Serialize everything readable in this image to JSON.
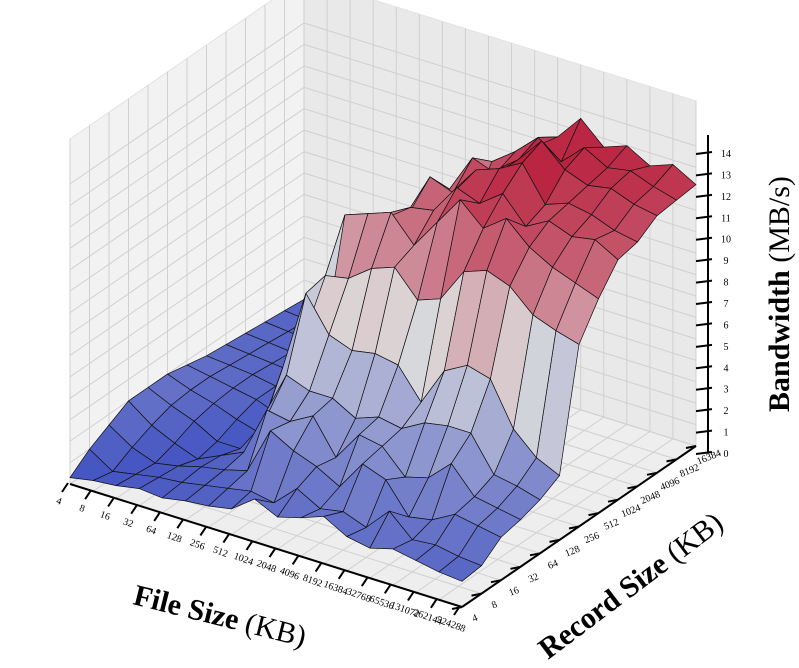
{
  "chart_data": {
    "type": "surface3d",
    "x_axis": {
      "label": "File Size",
      "unit": "(KB)",
      "ticks": [
        "4",
        "8",
        "16",
        "32",
        "64",
        "128",
        "256",
        "512",
        "1024",
        "2048",
        "4096",
        "8192",
        "16384",
        "32768",
        "65536",
        "131072",
        "262144",
        "524288"
      ]
    },
    "y_axis": {
      "label": "Record Size",
      "unit": "(KB)",
      "ticks": [
        "4",
        "8",
        "16",
        "32",
        "64",
        "128",
        "256",
        "512",
        "1024",
        "2048",
        "4096",
        "8192",
        "16384"
      ]
    },
    "z_axis": {
      "label": "Bandwidth",
      "unit": "(MB/s)",
      "ticks": [
        "0",
        "1",
        "2",
        "3",
        "4",
        "5",
        "6",
        "7",
        "8",
        "9",
        "10",
        "11",
        "12",
        "13",
        "14"
      ],
      "range": [
        0,
        14
      ]
    },
    "colormap": "coolwarm",
    "colors": {
      "low": "#3b4cc0",
      "mid": "#dddddd",
      "high": "#b40426",
      "pane": "#f2f2f2",
      "grid": "#d0d0d0"
    },
    "grid": true,
    "z_values": [
      [
        0.3,
        0.5,
        0.6,
        0.8,
        0.7,
        0.9,
        1.0,
        1.2,
        2.0,
        1.5,
        1.8,
        2.2,
        1.6,
        1.4,
        1.7,
        1.5,
        1.3,
        1.2
      ],
      [
        1.0,
        0.3,
        0.5,
        0.7,
        0.8,
        1.0,
        1.2,
        1.4,
        1.2,
        2.2,
        1.6,
        1.8,
        1.4,
        2.5,
        1.5,
        1.6,
        1.4,
        1.3
      ],
      [
        1.5,
        0.8,
        0.4,
        0.6,
        0.9,
        1.1,
        1.4,
        3.6,
        3.0,
        2.6,
        2.0,
        3.4,
        3.0,
        1.6,
        1.8,
        2.4,
        2.2,
        2.0
      ],
      [
        2.0,
        1.2,
        0.7,
        0.3,
        0.8,
        1.3,
        3.6,
        3.4,
        4.0,
        2.4,
        3.8,
        3.6,
        2.5,
        2.8,
        3.8,
        2.6,
        2.4,
        2.2
      ],
      [
        2.0,
        1.5,
        1.1,
        0.5,
        0.5,
        2.0,
        4.6,
        4.2,
        4.2,
        3.6,
        4.0,
        3.8,
        4.4,
        4.6,
        4.6,
        3.0,
        2.8,
        2.5
      ],
      [
        2.0,
        1.6,
        1.3,
        0.9,
        0.6,
        4.0,
        7.8,
        6.2,
        5.8,
        6.0,
        5.8,
        4.4,
        6.2,
        6.8,
        6.5,
        4.5,
        3.5,
        3.0
      ],
      [
        1.8,
        1.6,
        1.4,
        1.2,
        0.8,
        4.6,
        8.0,
        8.2,
        9.0,
        9.4,
        8.2,
        8.6,
        10.2,
        10.6,
        10.2,
        9.2,
        8.8,
        8.5
      ],
      [
        1.6,
        1.5,
        1.4,
        1.2,
        1.0,
        3.2,
        10.2,
        10.6,
        11.0,
        9.8,
        11.2,
        12.6,
        11.6,
        12.4,
        11.4,
        10.8,
        10.4,
        10.0
      ],
      [
        1.5,
        1.4,
        1.3,
        1.2,
        1.1,
        2.2,
        8.4,
        9.8,
        10.6,
        10.8,
        12.2,
        11.8,
        12.6,
        11.4,
        12.0,
        11.6,
        11.8,
        11.2
      ],
      [
        1.4,
        1.3,
        1.2,
        1.1,
        1.0,
        1.6,
        5.0,
        9.2,
        11.4,
        11.0,
        12.4,
        12.8,
        13.4,
        11.8,
        12.2,
        12.0,
        11.6,
        11.4
      ],
      [
        1.3,
        1.2,
        1.1,
        1.0,
        1.0,
        1.4,
        2.8,
        6.4,
        10.2,
        12.0,
        11.6,
        12.6,
        13.8,
        12.8,
        12.4,
        12.6,
        12.2,
        12.0
      ],
      [
        1.2,
        1.1,
        1.0,
        1.0,
        0.9,
        1.2,
        1.8,
        3.8,
        8.4,
        11.2,
        12.0,
        13.0,
        12.2,
        13.2,
        12.6,
        12.8,
        12.4,
        12.1
      ],
      [
        1.1,
        1.0,
        1.0,
        0.9,
        0.9,
        1.0,
        1.4,
        2.4,
        5.6,
        9.8,
        11.6,
        12.4,
        13.6,
        12.6,
        13.0,
        12.4,
        12.8,
        12.2
      ]
    ]
  }
}
